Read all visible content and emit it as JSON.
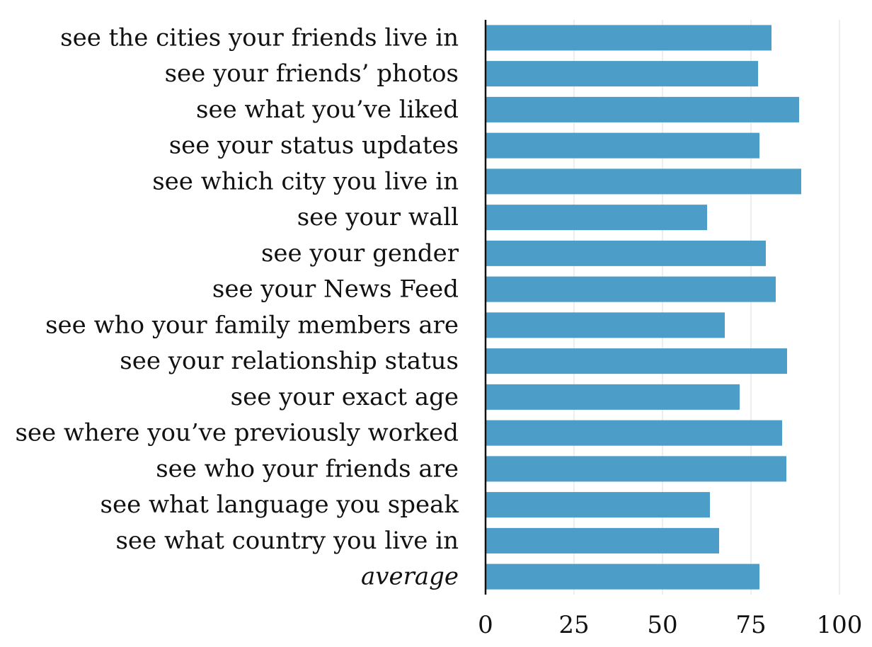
{
  "chart_data": {
    "type": "bar",
    "orientation": "horizontal",
    "categories": [
      "see the cities your friends live in",
      "see your friends’ photos",
      "see what you’ve liked",
      "see your status updates",
      "see which city you live in",
      "see your wall",
      "see your gender",
      "see your News Feed",
      "see who your family members are",
      "see your relationship status",
      "see your exact age",
      "see where you’ve previously worked",
      "see who your friends are",
      "see what language you speak",
      "see what country you live in",
      "average"
    ],
    "italic_categories": [
      "average"
    ],
    "values": [
      80.8,
      77.0,
      88.6,
      77.4,
      89.2,
      62.6,
      79.2,
      82.0,
      67.6,
      85.2,
      71.8,
      83.8,
      85.0,
      63.4,
      66.0,
      77.4
    ],
    "bar_color": "#4d9dc9",
    "xlim": [
      0,
      100
    ],
    "xticks": [
      0,
      25,
      50,
      75,
      100
    ],
    "xtick_labels": [
      "0",
      "25",
      "50",
      "75",
      "100"
    ],
    "grid": "vertical",
    "title": "",
    "xlabel": "",
    "ylabel": ""
  }
}
